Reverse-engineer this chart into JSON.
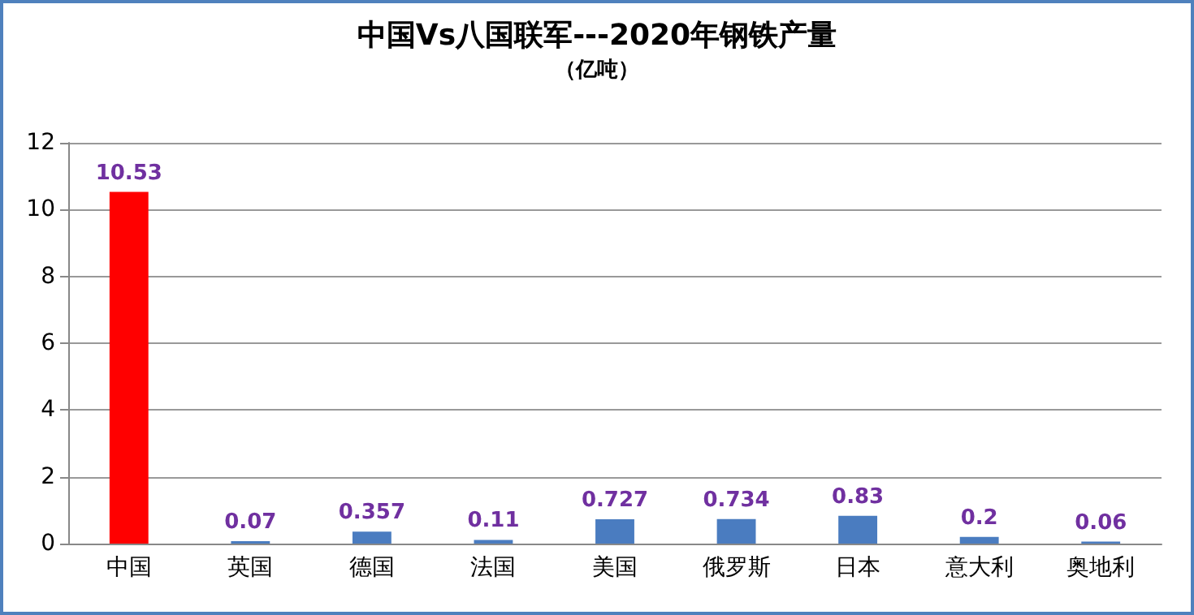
{
  "chart_data": {
    "type": "bar",
    "title": "中国Vs八国联军---2020年钢铁产量",
    "subtitle": "（亿吨）",
    "categories": [
      "中国",
      "英国",
      "德国",
      "法国",
      "美国",
      "俄罗斯",
      "日本",
      "意大利",
      "奥地利"
    ],
    "values": [
      10.53,
      0.07,
      0.357,
      0.11,
      0.727,
      0.734,
      0.83,
      0.2,
      0.06
    ],
    "colors": [
      "#ff0000",
      "#4a7cc0",
      "#4a7cc0",
      "#4a7cc0",
      "#4a7cc0",
      "#4a7cc0",
      "#4a7cc0",
      "#4a7cc0",
      "#4a7cc0"
    ],
    "ylim": [
      0,
      12
    ],
    "yticks": [
      0,
      2,
      4,
      6,
      8,
      10,
      12
    ],
    "grid": "y",
    "data_labels": true
  }
}
